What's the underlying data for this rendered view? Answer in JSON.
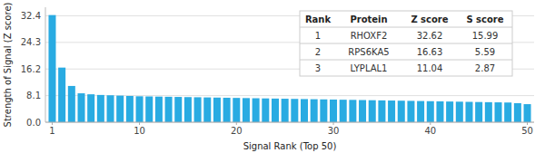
{
  "chart_data": {
    "type": "bar",
    "xlabel": "Signal Rank (Top 50)",
    "ylabel": "Strength of Signal (Z score)",
    "x": [
      1,
      2,
      3,
      4,
      5,
      6,
      7,
      8,
      9,
      10,
      11,
      12,
      13,
      14,
      15,
      16,
      17,
      18,
      19,
      20,
      21,
      22,
      23,
      24,
      25,
      26,
      27,
      28,
      29,
      30,
      31,
      32,
      33,
      34,
      35,
      36,
      37,
      38,
      39,
      40,
      41,
      42,
      43,
      44,
      45,
      46,
      47,
      48,
      49,
      50
    ],
    "values": [
      32.62,
      16.63,
      11.04,
      8.8,
      8.5,
      8.3,
      8.2,
      8.1,
      8.0,
      7.9,
      7.85,
      7.8,
      7.75,
      7.7,
      7.65,
      7.6,
      7.55,
      7.5,
      7.45,
      7.4,
      7.35,
      7.3,
      7.25,
      7.2,
      7.15,
      7.1,
      7.05,
      7.0,
      6.95,
      6.9,
      6.85,
      6.8,
      6.75,
      6.7,
      6.65,
      6.6,
      6.55,
      6.5,
      6.45,
      6.4,
      6.35,
      6.3,
      6.25,
      6.2,
      6.15,
      6.1,
      6.05,
      6.0,
      5.8,
      5.5
    ],
    "color": "#29ABE2",
    "xlim": [
      0.3,
      50.7
    ],
    "xticks": [
      1,
      10,
      20,
      30,
      40,
      50
    ],
    "ylim": [
      0,
      35
    ],
    "yticks": [
      {
        "value": 0.0,
        "label": "0.0"
      },
      8.1,
      16.2,
      24.3,
      32.4
    ],
    "grid": true,
    "table": {
      "header": [
        "Rank",
        "Protein",
        "Z score",
        "S score"
      ],
      "rows": [
        [
          "1",
          "RHOXF2",
          "32.62",
          "15.99"
        ],
        [
          "2",
          "RPS6KA5",
          "16.63",
          "5.59"
        ],
        [
          "3",
          "LYPLAL1",
          "11.04",
          "2.87"
        ]
      ]
    }
  }
}
